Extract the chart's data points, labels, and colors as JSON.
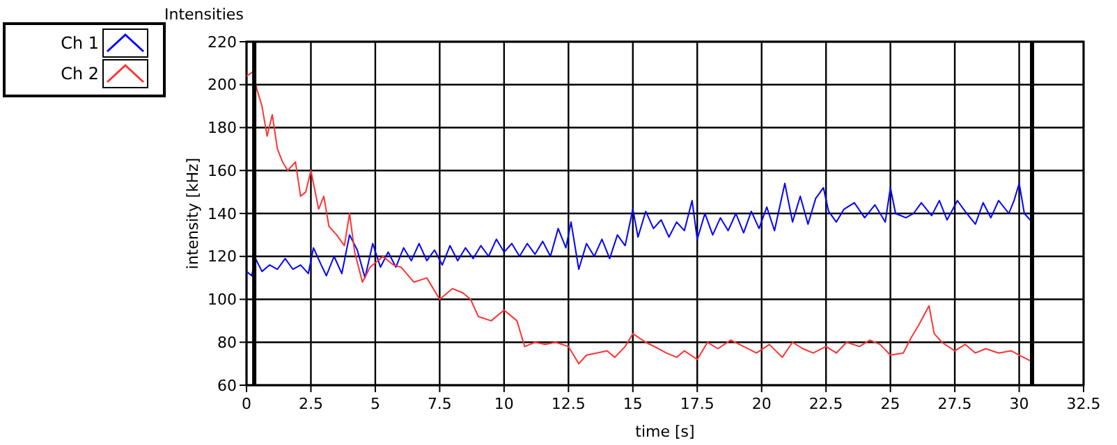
{
  "chart_data": {
    "type": "line",
    "title": "Intensities",
    "xlabel": "time [s]",
    "ylabel": "intensity [kHz]",
    "xlim": [
      0,
      32.5
    ],
    "xticks": [
      0,
      2.5,
      5,
      7.5,
      10,
      12.5,
      15,
      17.5,
      20,
      22.5,
      25,
      27.5,
      30,
      32.5
    ],
    "ylim": [
      60,
      220
    ],
    "yticks": [
      60,
      80,
      100,
      120,
      140,
      160,
      180,
      200,
      220
    ],
    "grid": true,
    "legend": "top left",
    "marker": "none",
    "line_style": "solid",
    "ref_lines": [
      {
        "axis": "x",
        "value": 0.3,
        "color": "#000000"
      },
      {
        "axis": "x",
        "value": 30.5,
        "color": "#000000"
      }
    ],
    "series": [
      {
        "name": "Ch 1",
        "color": "#0000ff",
        "x": [
          0,
          0.2,
          0.35,
          0.6,
          0.9,
          1.2,
          1.5,
          1.8,
          2.1,
          2.4,
          2.6,
          2.9,
          3.1,
          3.4,
          3.7,
          4.0,
          4.3,
          4.6,
          4.9,
          5.2,
          5.5,
          5.8,
          6.1,
          6.4,
          6.7,
          7.0,
          7.3,
          7.6,
          7.9,
          8.2,
          8.5,
          8.8,
          9.1,
          9.4,
          9.7,
          10.0,
          10.3,
          10.6,
          10.9,
          11.2,
          11.5,
          11.8,
          12.1,
          12.4,
          12.6,
          12.9,
          13.2,
          13.5,
          13.8,
          14.1,
          14.4,
          14.7,
          15.0,
          15.2,
          15.5,
          15.8,
          16.1,
          16.4,
          16.7,
          17.0,
          17.3,
          17.5,
          17.8,
          18.1,
          18.4,
          18.7,
          19.0,
          19.3,
          19.6,
          19.9,
          20.2,
          20.5,
          20.9,
          21.2,
          21.5,
          21.8,
          22.1,
          22.4,
          22.6,
          22.9,
          23.2,
          23.6,
          24.0,
          24.4,
          24.8,
          25.0,
          25.2,
          25.6,
          25.9,
          26.2,
          26.6,
          26.9,
          27.2,
          27.6,
          27.9,
          28.3,
          28.6,
          28.9,
          29.2,
          29.6,
          29.8,
          30.0,
          30.2,
          30.5
        ],
        "values": [
          113,
          111,
          119,
          113,
          116,
          114,
          119,
          114,
          116,
          112,
          124,
          116,
          111,
          120,
          112,
          130,
          123,
          110,
          126,
          115,
          122,
          115,
          124,
          118,
          126,
          118,
          123,
          116,
          125,
          118,
          124,
          119,
          125,
          120,
          128,
          122,
          126,
          120,
          126,
          121,
          127,
          120,
          133,
          124,
          136,
          114,
          126,
          120,
          128,
          119,
          130,
          125,
          142,
          129,
          141,
          133,
          137,
          129,
          136,
          132,
          146,
          128,
          140,
          130,
          138,
          132,
          140,
          131,
          141,
          133,
          143,
          132,
          154,
          136,
          148,
          135,
          147,
          152,
          141,
          136,
          142,
          145,
          138,
          144,
          136,
          152,
          140,
          138,
          140,
          145,
          139,
          146,
          137,
          146,
          141,
          135,
          145,
          138,
          146,
          140,
          146,
          154,
          140,
          136
        ]
      },
      {
        "name": "Ch 2",
        "color": "#ff3333",
        "x": [
          0,
          0.25,
          0.4,
          0.6,
          0.8,
          1.0,
          1.2,
          1.4,
          1.6,
          1.9,
          2.1,
          2.3,
          2.5,
          2.8,
          3.0,
          3.2,
          3.5,
          3.8,
          4.0,
          4.2,
          4.5,
          4.8,
          5.0,
          5.3,
          5.7,
          6.0,
          6.5,
          7.0,
          7.5,
          8.0,
          8.4,
          8.7,
          9.0,
          9.5,
          10.0,
          10.5,
          10.8,
          11.2,
          11.6,
          12.0,
          12.5,
          12.9,
          13.2,
          13.6,
          14.0,
          14.3,
          14.7,
          15.0,
          15.5,
          16.0,
          16.3,
          16.7,
          17.0,
          17.5,
          17.9,
          18.3,
          18.8,
          19.3,
          19.8,
          20.3,
          20.8,
          21.2,
          21.6,
          22.0,
          22.5,
          22.9,
          23.3,
          23.8,
          24.2,
          24.6,
          25.0,
          25.5,
          25.8,
          26.1,
          26.5,
          26.7,
          27.0,
          27.5,
          27.9,
          28.3,
          28.7,
          29.2,
          29.7,
          30.0,
          30.5
        ],
        "values": [
          204,
          206,
          198,
          190,
          176,
          186,
          170,
          164,
          160,
          164,
          148,
          150,
          160,
          142,
          148,
          134,
          130,
          125,
          140,
          122,
          108,
          115,
          117,
          120,
          116,
          115,
          108,
          110,
          100,
          105,
          103,
          100,
          92,
          90,
          95,
          90,
          78,
          80,
          79,
          80,
          78,
          70,
          74,
          75,
          76,
          73,
          78,
          84,
          80,
          77,
          75,
          73,
          76,
          72,
          80,
          77,
          81,
          78,
          75,
          79,
          73,
          80,
          77,
          75,
          78,
          75,
          80,
          78,
          81,
          79,
          74,
          75,
          82,
          88,
          97,
          84,
          80,
          76,
          79,
          75,
          77,
          75,
          76,
          74,
          71
        ]
      }
    ]
  }
}
